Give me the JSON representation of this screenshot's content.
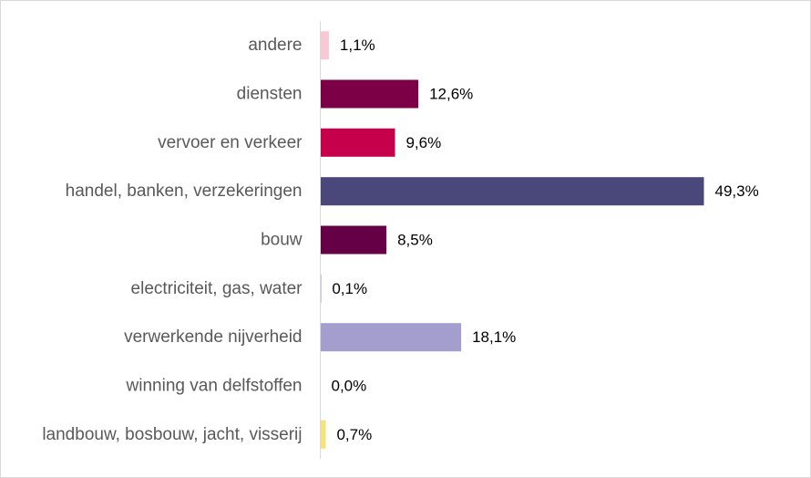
{
  "chart_data": {
    "type": "bar",
    "orientation": "horizontal",
    "title": "",
    "xlabel": "",
    "ylabel": "",
    "grid": false,
    "legend": "none",
    "xlim": [
      0,
      50
    ],
    "categories": [
      "andere",
      "diensten",
      "vervoer en verkeer",
      "handel, banken, verzekeringen",
      "bouw",
      "electriciteit, gas, water",
      "verwerkende nijverheid",
      "winning van delfstoffen",
      "landbouw, bosbouw, jacht, visserij"
    ],
    "values": [
      1.1,
      12.6,
      9.6,
      49.3,
      8.5,
      0.1,
      18.1,
      0.0,
      0.7
    ],
    "value_labels": [
      "1,1%",
      "12,6%",
      "9,6%",
      "49,3%",
      "8,5%",
      "0,1%",
      "18,1%",
      "0,0%",
      "0,7%"
    ],
    "colors": [
      "#f8c8d4",
      "#7c0046",
      "#c7004c",
      "#4a477a",
      "#650046",
      "#8a7fbf",
      "#a49ecf",
      "#8a7fbf",
      "#f7e27a"
    ],
    "axis_color": "#d9d9d9"
  }
}
